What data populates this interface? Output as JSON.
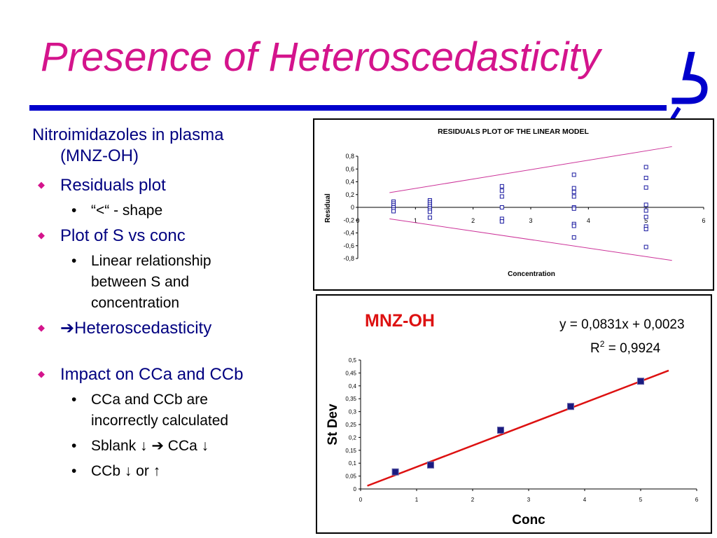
{
  "slide": {
    "title": "Presence of Heteroscedasticity"
  },
  "bullets": {
    "intro_line1": "Nitroimidazoles in plasma",
    "intro_line2": "(MNZ-OH)",
    "residuals_plot": "Residuals plot",
    "shape": "“<“ - shape",
    "plot_s_vs_conc": "Plot of S vs conc",
    "linear_rel_1": "Linear relationship",
    "linear_rel_2": "between S and",
    "linear_rel_3": "concentration",
    "heteroscedasticity": "Heteroscedasticity",
    "impact": "Impact on CCa and CCb",
    "cca_ccb_1": "CCa and CCb are",
    "cca_ccb_2": "incorrectly calculated",
    "sblank": "Sblank ↓ ➔ CCa ↓",
    "ccb": "CCb ↓ or ↑",
    "diamond_icon": "diamond-bullet",
    "arrow_icon": "right-arrow"
  },
  "chart_data": [
    {
      "type": "scatter",
      "title": "RESIDUALS PLOT OF THE LINEAR  MODEL",
      "xlabel": "Concentration",
      "ylabel": "Residual",
      "xlim": [
        0,
        6
      ],
      "ylim": [
        -0.8,
        0.8
      ],
      "x_ticks": [
        "0",
        "1",
        "2",
        "3",
        "4",
        "5",
        "6"
      ],
      "y_ticks": [
        "0,8",
        "0,6",
        "0,4",
        "0,2",
        "0",
        "-0,2",
        "-0,4",
        "-0,6",
        "-0,8"
      ],
      "marker_color": "#1a1aa0",
      "envelope_color": "#cc3399",
      "points": [
        {
          "x": 0.62,
          "y": 0.09
        },
        {
          "x": 0.62,
          "y": 0.06
        },
        {
          "x": 0.62,
          "y": 0.03
        },
        {
          "x": 0.62,
          "y": 0.0
        },
        {
          "x": 0.62,
          "y": -0.03
        },
        {
          "x": 0.62,
          "y": -0.06
        },
        {
          "x": 1.25,
          "y": 0.11
        },
        {
          "x": 1.25,
          "y": 0.08
        },
        {
          "x": 1.25,
          "y": 0.05
        },
        {
          "x": 1.25,
          "y": 0.02
        },
        {
          "x": 1.25,
          "y": -0.01
        },
        {
          "x": 1.25,
          "y": -0.04
        },
        {
          "x": 1.25,
          "y": -0.07
        },
        {
          "x": 1.25,
          "y": -0.16
        },
        {
          "x": 2.5,
          "y": 0.33
        },
        {
          "x": 2.5,
          "y": 0.26
        },
        {
          "x": 2.5,
          "y": 0.17
        },
        {
          "x": 2.5,
          "y": 0.0
        },
        {
          "x": 2.5,
          "y": -0.18
        },
        {
          "x": 2.5,
          "y": -0.22
        },
        {
          "x": 3.75,
          "y": 0.51
        },
        {
          "x": 3.75,
          "y": 0.3
        },
        {
          "x": 3.75,
          "y": 0.24
        },
        {
          "x": 3.75,
          "y": 0.17
        },
        {
          "x": 3.75,
          "y": 0.0
        },
        {
          "x": 3.75,
          "y": -0.02
        },
        {
          "x": 3.75,
          "y": -0.26
        },
        {
          "x": 3.75,
          "y": -0.29
        },
        {
          "x": 3.75,
          "y": -0.47
        },
        {
          "x": 5.0,
          "y": 0.63
        },
        {
          "x": 5.0,
          "y": 0.46
        },
        {
          "x": 5.0,
          "y": 0.31
        },
        {
          "x": 5.0,
          "y": 0.04
        },
        {
          "x": 5.0,
          "y": -0.05
        },
        {
          "x": 5.0,
          "y": -0.15
        },
        {
          "x": 5.0,
          "y": -0.3
        },
        {
          "x": 5.0,
          "y": -0.34
        },
        {
          "x": 5.0,
          "y": -0.62
        }
      ],
      "envelope": [
        {
          "x1": 0.55,
          "y1": 0.23,
          "x2": 5.45,
          "y2": 0.95
        },
        {
          "x1": 0.55,
          "y1": -0.18,
          "x2": 5.45,
          "y2": -0.83
        }
      ]
    },
    {
      "type": "scatter",
      "title": "MNZ-OH",
      "xlabel": "Conc",
      "ylabel": "St Dev",
      "xlim": [
        0,
        6
      ],
      "ylim": [
        0,
        0.5
      ],
      "x_ticks": [
        "0",
        "1",
        "2",
        "3",
        "4",
        "5",
        "6"
      ],
      "y_ticks": [
        "0,5",
        "0,45",
        "0,4",
        "0,35",
        "0,3",
        "0,25",
        "0,2",
        "0,15",
        "0,1",
        "0,05",
        "0"
      ],
      "equation": "y = 0,0831x + 0,0023",
      "r2_label": "R",
      "r2_sup": "2",
      "r2_value": " = 0,9924",
      "marker_color": "#1a1a80",
      "fit_color": "#dd1111",
      "title_color": "#dd1111",
      "points": [
        {
          "x": 0.62,
          "y": 0.066
        },
        {
          "x": 1.25,
          "y": 0.093
        },
        {
          "x": 2.5,
          "y": 0.228
        },
        {
          "x": 3.75,
          "y": 0.32
        },
        {
          "x": 5.0,
          "y": 0.418
        }
      ],
      "fit": {
        "slope": 0.0831,
        "intercept": 0.0023,
        "x_start": 0.12,
        "x_end": 5.5
      }
    }
  ]
}
